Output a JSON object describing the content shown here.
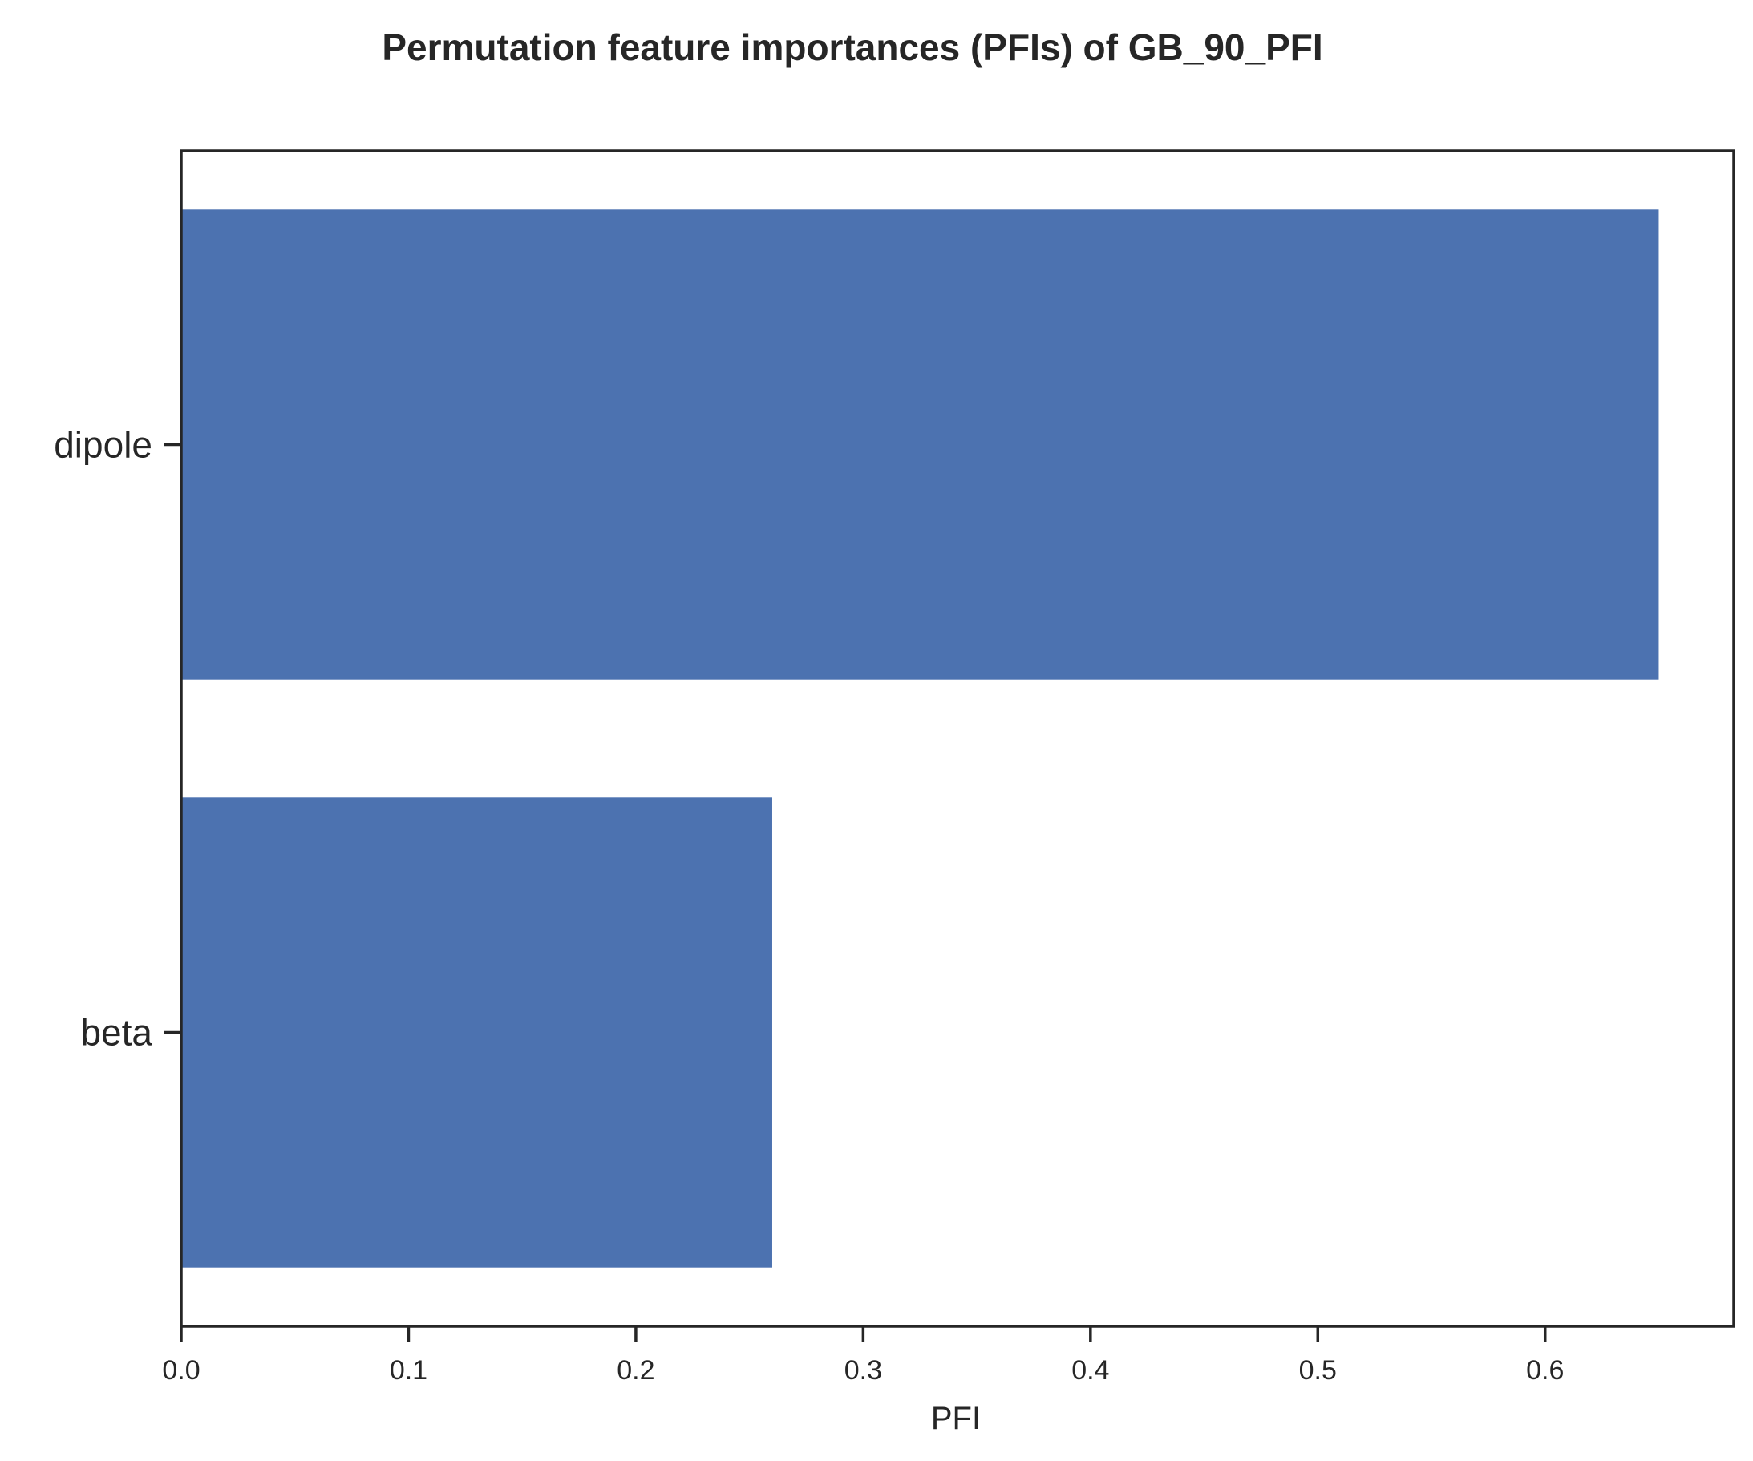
{
  "chart_data": {
    "type": "bar",
    "orientation": "horizontal",
    "title": "Permutation feature importances (PFIs) of GB_90_PFI",
    "xlabel": "PFI",
    "ylabel": "",
    "categories": [
      "dipole",
      "beta"
    ],
    "values": [
      0.65,
      0.26
    ],
    "xlim": [
      0,
      0.683
    ],
    "xticks": [
      0.0,
      0.1,
      0.2,
      0.3,
      0.4,
      0.5,
      0.6
    ],
    "xtick_labels": [
      "0.0",
      "0.1",
      "0.2",
      "0.3",
      "0.4",
      "0.5",
      "0.6"
    ],
    "grid": false,
    "bar_color": "#4c72b0"
  }
}
